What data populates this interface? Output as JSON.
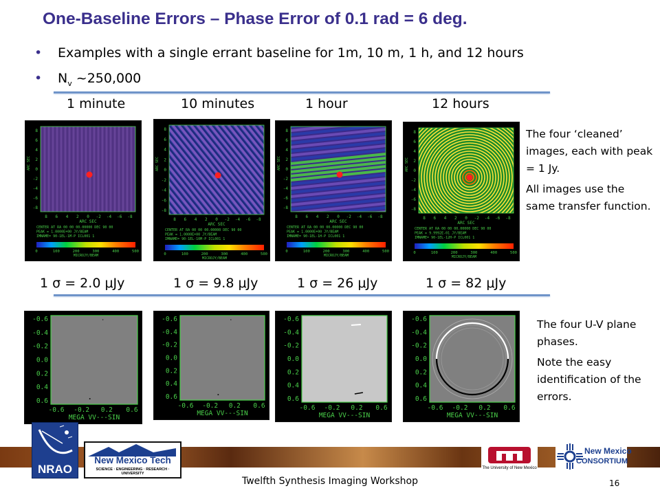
{
  "slide": {
    "title": "One-Baseline Errors – Phase Error of 0.1 rad = 6 deg.",
    "bullets": [
      "Examples with a single errant baseline for 1m, 10 m, 1 h, and 12 hours",
      {
        "pre": "N",
        "sub": "v",
        "post": " ~250,000"
      }
    ],
    "column_labels": [
      "1 minute",
      "10 minutes",
      "1 hour",
      "12 hours"
    ],
    "sigma_labels": [
      {
        "pre": "1 ",
        "sym": "σ",
        "mid": " = 2.0 ",
        "mu": "μ",
        "unit": "Jy"
      },
      {
        "pre": "1 ",
        "sym": "σ",
        "mid": " = 9.8 ",
        "mu": "μ",
        "unit": "Jy"
      },
      {
        "pre": "1 ",
        "sym": "σ",
        "mid": " = 26 ",
        "mu": "μ",
        "unit": "Jy"
      },
      {
        "pre": "1 ",
        "sym": "σ",
        "mid": " = 82 ",
        "mu": "μ",
        "unit": "Jy"
      }
    ],
    "note_top": [
      "The four ‘cleaned’ images, each with peak = 1 Jy.",
      "All images use the same transfer function."
    ],
    "note_bottom": [
      "The four U-V plane phases.",
      "Note the easy identification of the errors."
    ],
    "uv_axis": {
      "y_ticks": [
        "-0.6",
        "-0.4",
        "-0.2",
        "0.0",
        "0.2",
        "0.4",
        "0.6"
      ],
      "x_ticks": [
        "-0.6",
        "-0.2",
        "0.2",
        "0.6"
      ],
      "x_label": "MEGA VV---SIN"
    },
    "img_axis": {
      "x_label": "ARC SEC",
      "y_label": "ARC SEC",
      "x_ticks": [
        "8",
        "6",
        "4",
        "2",
        "0",
        "-2",
        "-4",
        "-6",
        "-8"
      ],
      "y_ticks": [
        "8",
        "6",
        "4",
        "2",
        "0",
        "-2",
        "-4",
        "-6",
        "-8"
      ],
      "colorbar_ticks": [
        "0",
        "100",
        "200",
        "300",
        "400",
        "500"
      ],
      "colorbar_label": "MICROJY/BEAM",
      "captions": [
        [
          "CENTER AT RA 00 00 00.00000   DEC 90 00",
          "PEAK = 1.0000E+00 JY/BEAM",
          "IMNAME= 90-1EL-1M-P  ICL001 1"
        ],
        [
          "CENTER AT RA 00 00 00.00000   DEC 90 00",
          "PEAK = 1.0000E+00 JY/BEAM",
          "IMNAME= 90-1EL-10M-P ICL001 1"
        ],
        [
          "CENTER AT RA 00 00 00.00000   DEC 90 00",
          "PEAK = 1.0000E+00 JY/BEAM",
          "IMNAME= 90-1EL-1H-P  ICL001 1"
        ],
        [
          "CENTER AT RA 00 00 00.00000   DEC 90 00",
          "PEAK = 9.9992E-01 JY/BEAM",
          "IMNAME= 90-1EL-12H-P ICL001 1"
        ]
      ]
    },
    "footer": {
      "workshop": "Twelfth Synthesis Imaging Workshop",
      "page": "16"
    },
    "logos": {
      "nrao": "NRAO",
      "nmt_name": "New Mexico Tech",
      "nmt_sub": "SCIENCE · ENGINEERING · RESEARCH · UNIVERSITY",
      "unm": "The University of New Mexico",
      "consortium_1": "New Mexico",
      "consortium_2": "CONSORTIUM"
    },
    "colors": {
      "title": "#3a2f8c",
      "rule": "#6f94c9",
      "axis_green": "#4ad04a",
      "peak_red": "#ff2020"
    }
  }
}
